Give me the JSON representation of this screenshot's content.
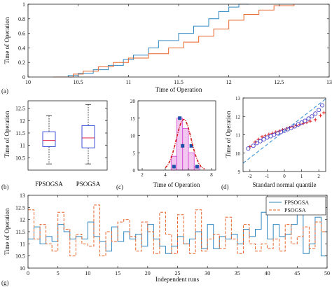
{
  "colors": {
    "series_a": "#2e86c1",
    "series_b": "#e8642a",
    "box": "#2c3fd6",
    "median": "#e0204a",
    "hist_fill": "#f3c8f0",
    "hist_edge": "#d13ad1",
    "fit_curve": "#d11a1a",
    "qq_marker": "#4a3fc8",
    "qq_plus": "#e01a1a",
    "qq_line": "#2b8ad4"
  },
  "chart_data": [
    {
      "panel": "a",
      "type": "line",
      "subtype": "empirical_cdf",
      "panel_label": "(a)",
      "xlabel": "Time of Operation",
      "ylabel": "Time of Operation",
      "xlim": [
        10,
        13
      ],
      "ylim": [
        0,
        1
      ],
      "xticks": [
        "10",
        "10.5",
        "11",
        "11.5",
        "12",
        "12.5",
        "13"
      ],
      "yticks": [
        "0",
        "0.2",
        "0.4",
        "0.6",
        "0.8",
        "1"
      ],
      "series": [
        {
          "key": "FPSOGSA",
          "color_key": "series_a",
          "x": [
            10.25,
            10.4,
            10.5,
            10.65,
            10.8,
            10.95,
            11.05,
            11.2,
            11.3,
            11.5,
            11.65,
            11.8,
            11.9,
            12.0,
            12.1,
            12.2
          ],
          "y": [
            0.0,
            0.02,
            0.05,
            0.1,
            0.16,
            0.24,
            0.3,
            0.4,
            0.5,
            0.6,
            0.7,
            0.8,
            0.9,
            0.96,
            1.0,
            1.0
          ]
        },
        {
          "key": "PSOGSA",
          "color_key": "series_b",
          "x": [
            10.25,
            10.45,
            10.55,
            10.7,
            10.85,
            11.0,
            11.2,
            11.4,
            11.55,
            11.7,
            11.85,
            12.0,
            12.15,
            12.3,
            12.45,
            12.65
          ],
          "y": [
            0.0,
            0.04,
            0.08,
            0.14,
            0.2,
            0.26,
            0.32,
            0.4,
            0.48,
            0.56,
            0.66,
            0.78,
            0.86,
            0.92,
            0.98,
            1.0
          ]
        }
      ]
    },
    {
      "panel": "b",
      "type": "boxplot",
      "panel_label": "(b)",
      "ylabel": "Time of Operation",
      "ylim": [
        10,
        12.8
      ],
      "yticks": [
        "10.5",
        "11",
        "11.5",
        "12",
        "12.5"
      ],
      "categories": [
        "FPSOGSA",
        "PSOGSA"
      ],
      "boxes": [
        {
          "whisker_low": 10.25,
          "q1": 10.95,
          "median": 11.2,
          "q3": 11.55,
          "whisker_high": 12.2
        },
        {
          "whisker_low": 10.25,
          "q1": 10.9,
          "median": 11.3,
          "q3": 11.8,
          "whisker_high": 12.65
        }
      ]
    },
    {
      "panel": "c",
      "type": "bar",
      "subtype": "histogram_with_normal_fit",
      "panel_label": "(c)",
      "xlabel": "Time of Operation",
      "ylim": [
        0,
        20
      ],
      "xlim": [
        2,
        8
      ],
      "xticks": [
        "2",
        "4",
        "6",
        "8"
      ],
      "yticks": [
        "0",
        "5",
        "10",
        "15",
        "20"
      ],
      "bins": [
        {
          "from": 4.5,
          "to": 5.0,
          "count": 4
        },
        {
          "from": 5.0,
          "to": 5.5,
          "count": 15
        },
        {
          "from": 5.5,
          "to": 6.0,
          "count": 12
        },
        {
          "from": 6.0,
          "to": 6.5,
          "count": 5
        },
        {
          "from": 6.5,
          "to": 7.0,
          "count": 1
        }
      ],
      "highlight_marks": [
        {
          "x": 5.25,
          "y": 15
        },
        {
          "x": 5.5,
          "y": 7
        },
        {
          "x": 6.25,
          "y": 7
        },
        {
          "x": 4.75,
          "y": 1
        },
        {
          "x": 6.75,
          "y": 1
        }
      ],
      "fit": {
        "mean": 5.6,
        "sd": 0.65,
        "peak": 14.6,
        "range": [
          4.0,
          7.4
        ]
      }
    },
    {
      "panel": "d",
      "type": "scatter",
      "subtype": "normal_qq",
      "panel_label": "(d)",
      "xlabel": "Standard normal quantile",
      "ylabel": "Time of Operation",
      "xlim": [
        -2.4,
        2.4
      ],
      "ylim": [
        9,
        13
      ],
      "xticks": [
        "-2",
        "-1",
        "0",
        "1",
        "2"
      ],
      "yticks": [
        "9",
        "10",
        "11",
        "12",
        "13"
      ],
      "circles": [
        [
          -2.1,
          10.25
        ],
        [
          -1.8,
          10.4
        ],
        [
          -1.6,
          10.55
        ],
        [
          -1.4,
          10.65
        ],
        [
          -1.2,
          10.75
        ],
        [
          -1.0,
          10.85
        ],
        [
          -0.8,
          10.92
        ],
        [
          -0.6,
          11.0
        ],
        [
          -0.4,
          11.08
        ],
        [
          -0.2,
          11.15
        ],
        [
          0.0,
          11.22
        ],
        [
          0.2,
          11.3
        ],
        [
          0.4,
          11.38
        ],
        [
          0.6,
          11.46
        ],
        [
          0.8,
          11.56
        ],
        [
          1.0,
          11.66
        ],
        [
          1.2,
          11.76
        ],
        [
          1.4,
          11.88
        ],
        [
          1.6,
          12.0
        ],
        [
          1.8,
          12.15
        ],
        [
          2.0,
          12.35
        ],
        [
          2.2,
          12.6
        ]
      ],
      "plus": [
        [
          -2.0,
          10.35
        ],
        [
          -1.7,
          10.6
        ],
        [
          -1.5,
          10.75
        ],
        [
          -1.3,
          10.88
        ],
        [
          -1.1,
          10.95
        ],
        [
          -0.9,
          11.02
        ],
        [
          -0.7,
          11.08
        ],
        [
          -0.5,
          11.14
        ],
        [
          -0.3,
          11.2
        ],
        [
          -0.1,
          11.26
        ],
        [
          0.1,
          11.32
        ],
        [
          0.3,
          11.38
        ],
        [
          0.5,
          11.44
        ],
        [
          0.7,
          11.5
        ],
        [
          0.9,
          11.56
        ],
        [
          1.1,
          11.62
        ],
        [
          1.3,
          11.68
        ],
        [
          1.5,
          11.74
        ],
        [
          1.8,
          11.82
        ],
        [
          2.1,
          12.05
        ],
        [
          2.3,
          12.2
        ]
      ],
      "reference_line": {
        "x": [
          -2.4,
          2.4
        ],
        "y": [
          9.45,
          12.95
        ]
      }
    },
    {
      "panel": "g",
      "type": "line",
      "subtype": "stairs",
      "panel_label": "(g)",
      "xlabel": "Independent runs",
      "ylabel": "Time of Operation",
      "xlim": [
        0,
        50
      ],
      "ylim": [
        10,
        13
      ],
      "xticks": [
        "0",
        "5",
        "10",
        "15",
        "20",
        "25",
        "30",
        "35",
        "40",
        "45",
        "50"
      ],
      "yticks": [
        "10",
        "10.5",
        "11",
        "11.5",
        "12",
        "12.5",
        "13"
      ],
      "legend": {
        "entries": [
          "FPSOGSA",
          "PSOGSA"
        ],
        "position": "top-right"
      },
      "series": [
        {
          "name": "FPSOGSA",
          "color_key": "series_a",
          "values": [
            11.2,
            11.7,
            11.0,
            11.3,
            11.1,
            11.8,
            11.5,
            11.2,
            11.3,
            11.2,
            11.9,
            11.3,
            11.1,
            10.7,
            11.7,
            11.1,
            11.5,
            11.2,
            11.4,
            10.9,
            11.8,
            11.2,
            10.9,
            10.6,
            10.9,
            11.3,
            11.0,
            11.2,
            11.5,
            10.8,
            11.8,
            10.8,
            11.3,
            11.2,
            11.4,
            11.0,
            11.6,
            11.3,
            11.6,
            12.3,
            11.2,
            11.8,
            11.3,
            11.4,
            11.8,
            12.2,
            10.6,
            11.0,
            12.1,
            10.5
          ]
        },
        {
          "name": "PSOGSA",
          "color_key": "series_b",
          "values": [
            12.4,
            11.2,
            11.8,
            11.0,
            10.7,
            12.3,
            11.6,
            10.5,
            11.4,
            11.0,
            10.9,
            12.6,
            10.5,
            11.5,
            11.1,
            11.9,
            12.0,
            11.3,
            10.7,
            11.9,
            11.5,
            10.6,
            12.3,
            11.4,
            10.6,
            12.2,
            11.0,
            10.6,
            12.4,
            10.7,
            11.2,
            11.4,
            10.8,
            12.1,
            11.2,
            10.6,
            11.8,
            11.0,
            10.7,
            11.0,
            10.8,
            11.2,
            10.7,
            11.8,
            11.0,
            11.3,
            11.7,
            10.8,
            11.9,
            11.5
          ]
        }
      ]
    }
  ]
}
